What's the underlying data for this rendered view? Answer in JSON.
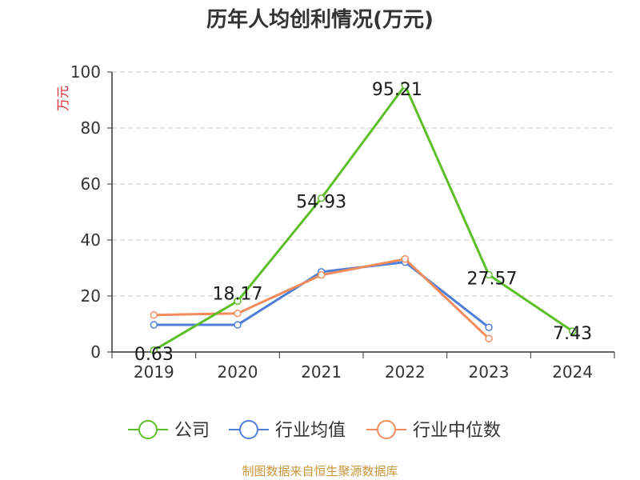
{
  "title": "历年人均创利情况(万元)",
  "source": "制图数据来自恒生聚源数据库",
  "source_color": "#c8963c",
  "chart_data": {
    "type": "line",
    "title": "历年人均创利情况(万元)",
    "ylabel": "万元",
    "ylim": [
      0,
      100
    ],
    "yticks": [
      0,
      20,
      40,
      60,
      80,
      100
    ],
    "categories": [
      "2019",
      "2020",
      "2021",
      "2022",
      "2023",
      "2024"
    ],
    "grid": true,
    "legend_position": "bottom",
    "series": [
      {
        "name": "公司",
        "color": "#5cbf27",
        "values": [
          0.63,
          18.17,
          54.93,
          95.21,
          27.57,
          7.43
        ],
        "labels": [
          "0.63",
          "18.17",
          "54.93",
          "95.21",
          "27.57",
          "7.43"
        ]
      },
      {
        "name": "行业均值",
        "color": "#4f7fd9",
        "values": [
          9.7,
          9.7,
          28.6,
          32.1,
          8.8,
          null
        ]
      },
      {
        "name": "行业中位数",
        "color": "#f28c5c",
        "values": [
          13.2,
          13.8,
          27.5,
          33.2,
          4.8,
          null
        ]
      }
    ]
  }
}
